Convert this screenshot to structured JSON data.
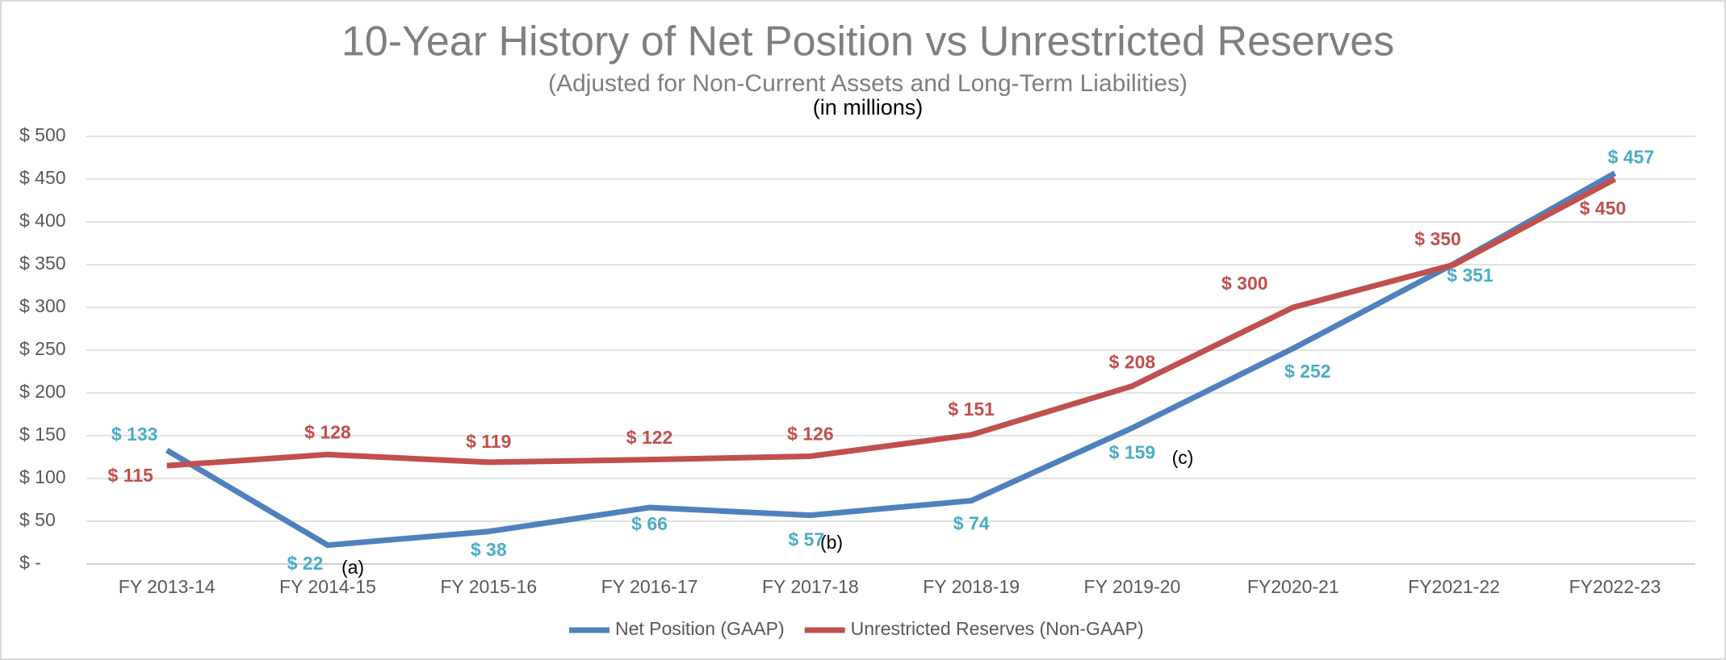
{
  "chart_data": {
    "type": "line",
    "title": "10-Year History of Net Position vs Unrestricted Reserves",
    "subtitle": "(Adjusted for Non-Current Assets and Long-Term Liabilities)",
    "subtitle2": "(in millions)",
    "categories": [
      "FY 2013-14",
      "FY 2014-15",
      "FY 2015-16",
      "FY 2016-17",
      "FY 2017-18",
      "FY 2018-19",
      "FY 2019-20",
      "FY2020-21",
      "FY2021-22",
      "FY2022-23"
    ],
    "series": [
      {
        "name": "Net Position (GAAP)",
        "color": "#4f81bd",
        "label_color": "#4bacc6",
        "values": [
          133,
          22,
          38,
          66,
          57,
          74,
          159,
          252,
          351,
          457
        ],
        "value_labels": [
          "$ 133",
          "$ 22",
          "$ 38",
          "$ 66",
          "$ 57",
          "$ 74",
          "$ 159",
          "$ 252",
          "$ 351",
          "$ 457"
        ]
      },
      {
        "name": "Unrestricted Reserves (Non-GAAP)",
        "color": "#c0504d",
        "label_color": "#c0504d",
        "values": [
          115,
          128,
          119,
          122,
          126,
          151,
          208,
          300,
          350,
          450
        ],
        "value_labels": [
          "$ 115",
          "$ 128",
          "$ 119",
          "$ 122",
          "$ 126",
          "$ 151",
          "$ 208",
          "$ 300",
          "$ 350",
          "$ 450"
        ]
      }
    ],
    "annotations": [
      "(a)",
      "(b)",
      "(c)"
    ],
    "ylim": [
      0,
      500
    ],
    "yticks": [
      {
        "value": 0,
        "label": "$ -"
      },
      {
        "value": 50,
        "label": "$ 50"
      },
      {
        "value": 100,
        "label": "$ 100"
      },
      {
        "value": 150,
        "label": "$ 150"
      },
      {
        "value": 200,
        "label": "$ 200"
      },
      {
        "value": 250,
        "label": "$ 250"
      },
      {
        "value": 300,
        "label": "$ 300"
      },
      {
        "value": 350,
        "label": "$ 350"
      },
      {
        "value": 400,
        "label": "$ 400"
      },
      {
        "value": 450,
        "label": "$ 450"
      },
      {
        "value": 500,
        "label": "$ 500"
      }
    ],
    "grid": true,
    "legend": "bottom"
  }
}
